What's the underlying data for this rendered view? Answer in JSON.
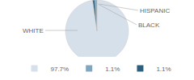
{
  "chart_data": {
    "type": "pie",
    "categories": [
      "WHITE",
      "HISPANIC",
      "BLACK"
    ],
    "values": [
      97.7,
      1.1,
      1.1
    ],
    "value_labels": [
      "97.7%",
      "1.1%",
      "1.1%"
    ],
    "colors": [
      "#d6e0ea",
      "#7fa8c0",
      "#2d5f7c"
    ],
    "legend": "bottom"
  }
}
